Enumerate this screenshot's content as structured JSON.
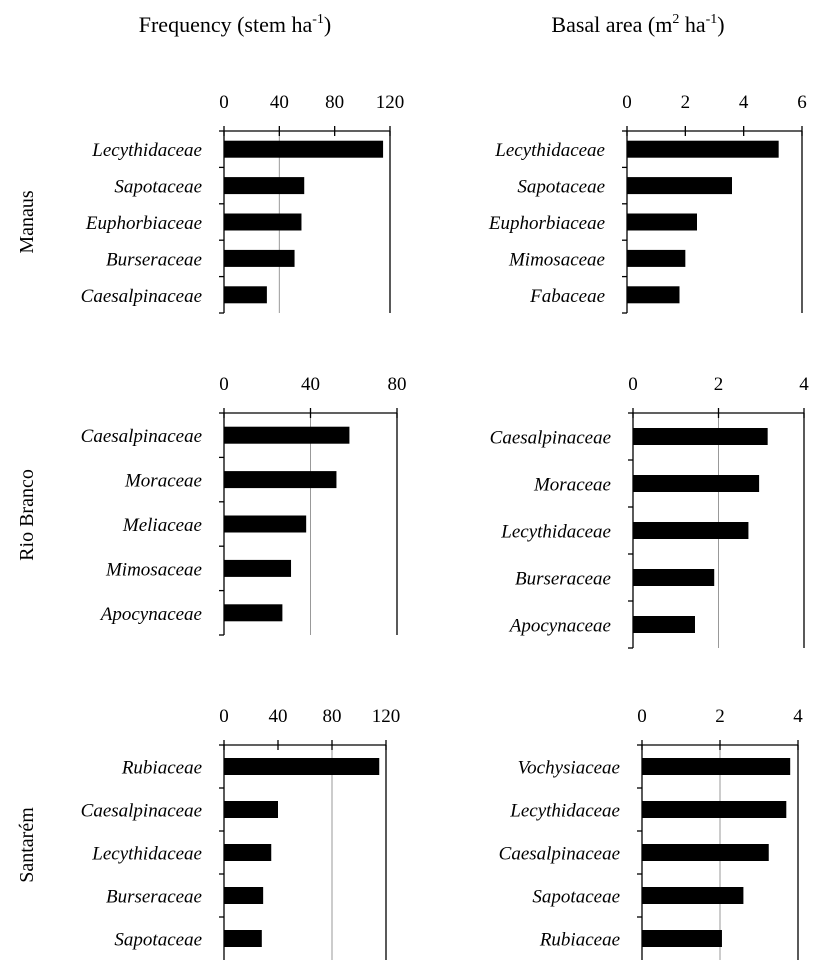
{
  "titles": {
    "frequency": {
      "text": "Frequency (stem ha",
      "sup": "-1",
      "end": ")"
    },
    "basal": {
      "text": "Basal area (m",
      "sup1": "2",
      "mid": " ha",
      "sup2": "-1",
      "end": ")"
    }
  },
  "chart_data": [
    {
      "type": "bar",
      "site": "Manaus",
      "metric": "Frequency",
      "xlim": [
        0,
        120
      ],
      "ticks": [
        0,
        40,
        80,
        120
      ],
      "grid": [
        40
      ],
      "categories": [
        "Lecythidaceae",
        "Sapotaceae",
        "Euphorbiaceae",
        "Burseraceae",
        "Caesalpinaceae"
      ],
      "values": [
        115,
        58,
        56,
        51,
        31
      ]
    },
    {
      "type": "bar",
      "site": "Manaus",
      "metric": "Basal area",
      "xlim": [
        0,
        6
      ],
      "ticks": [
        0,
        2,
        4,
        6
      ],
      "grid": [],
      "categories": [
        "Lecythidaceae",
        "Sapotaceae",
        "Euphorbiaceae",
        "Mimosaceae",
        "Fabaceae"
      ],
      "values": [
        5.2,
        3.6,
        2.4,
        2.0,
        1.8
      ]
    },
    {
      "type": "bar",
      "site": "Rio Branco",
      "metric": "Frequency",
      "xlim": [
        0,
        80
      ],
      "ticks": [
        0,
        40,
        80
      ],
      "grid": [
        40
      ],
      "categories": [
        "Caesalpinaceae",
        "Moraceae",
        "Meliaceae",
        "Mimosaceae",
        "Apocynaceae"
      ],
      "values": [
        58,
        52,
        38,
        31,
        27
      ]
    },
    {
      "type": "bar",
      "site": "Rio Branco",
      "metric": "Basal area",
      "xlim": [
        0,
        4
      ],
      "ticks": [
        0,
        2,
        4
      ],
      "grid": [
        2
      ],
      "categories": [
        "Caesalpinaceae",
        "Moraceae",
        "Lecythidaceae",
        "Burseraceae",
        "Apocynaceae"
      ],
      "values": [
        3.15,
        2.95,
        2.7,
        1.9,
        1.45
      ]
    },
    {
      "type": "bar",
      "site": "Santarém",
      "metric": "Frequency",
      "xlim": [
        0,
        120
      ],
      "ticks": [
        0,
        40,
        80,
        120
      ],
      "grid": [
        80
      ],
      "categories": [
        "Rubiaceae",
        "Caesalpinaceae",
        "Lecythidaceae",
        "Burseraceae",
        "Sapotaceae"
      ],
      "values": [
        115,
        40,
        35,
        29,
        28
      ]
    },
    {
      "type": "bar",
      "site": "Santarém",
      "metric": "Basal area",
      "xlim": [
        0,
        4
      ],
      "ticks": [
        0,
        2,
        4
      ],
      "grid": [
        2
      ],
      "categories": [
        "Vochysiaceae",
        "Lecythidaceae",
        "Caesalpinaceae",
        "Sapotaceae",
        "Rubiaceae"
      ],
      "values": [
        3.8,
        3.7,
        3.25,
        2.6,
        2.05
      ]
    }
  ]
}
